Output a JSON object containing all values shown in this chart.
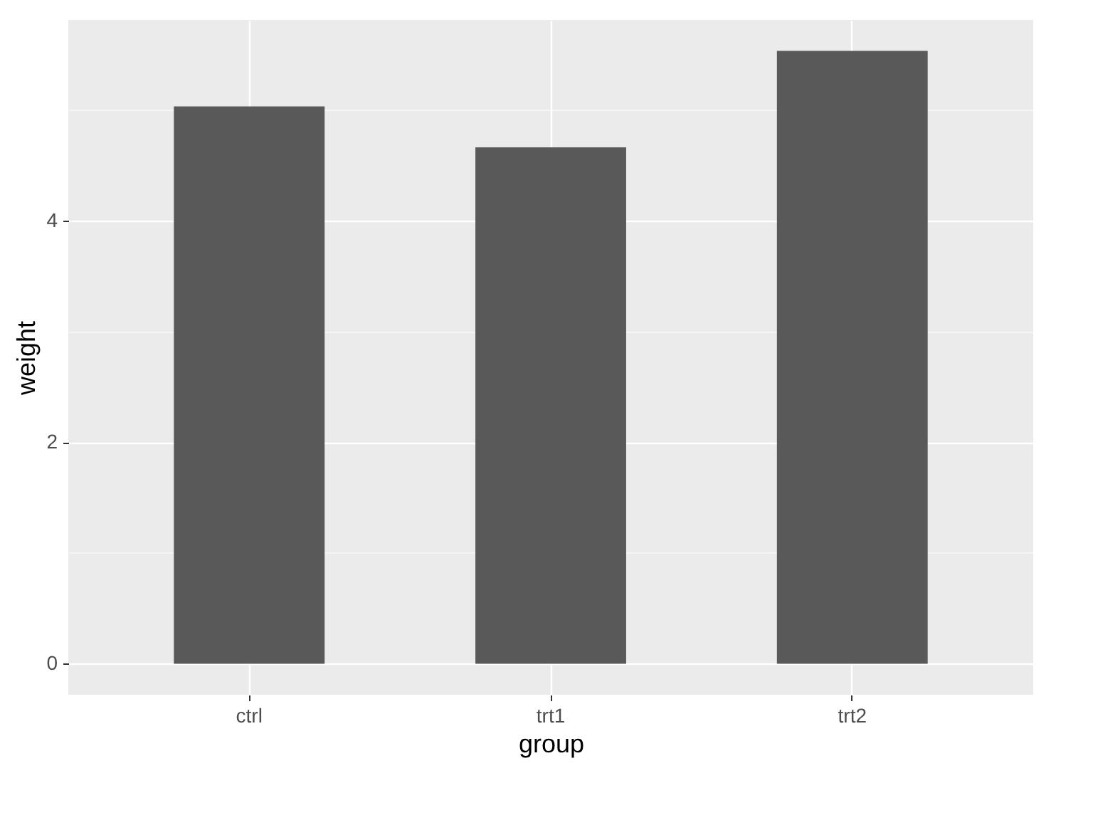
{
  "chart_data": {
    "type": "bar",
    "xlabel": "group",
    "ylabel": "weight",
    "categories": [
      "ctrl",
      "trt1",
      "trt2"
    ],
    "values": [
      5.03,
      4.66,
      5.53
    ],
    "color": "#595959",
    "ylim": [
      -0.28,
      5.81
    ],
    "yticks": [
      0,
      {
        "value": 1,
        "label": null
      },
      2,
      {
        "value": 3,
        "label": null
      },
      4,
      {
        "value": 5,
        "label": null
      }
    ],
    "grid": true
  }
}
